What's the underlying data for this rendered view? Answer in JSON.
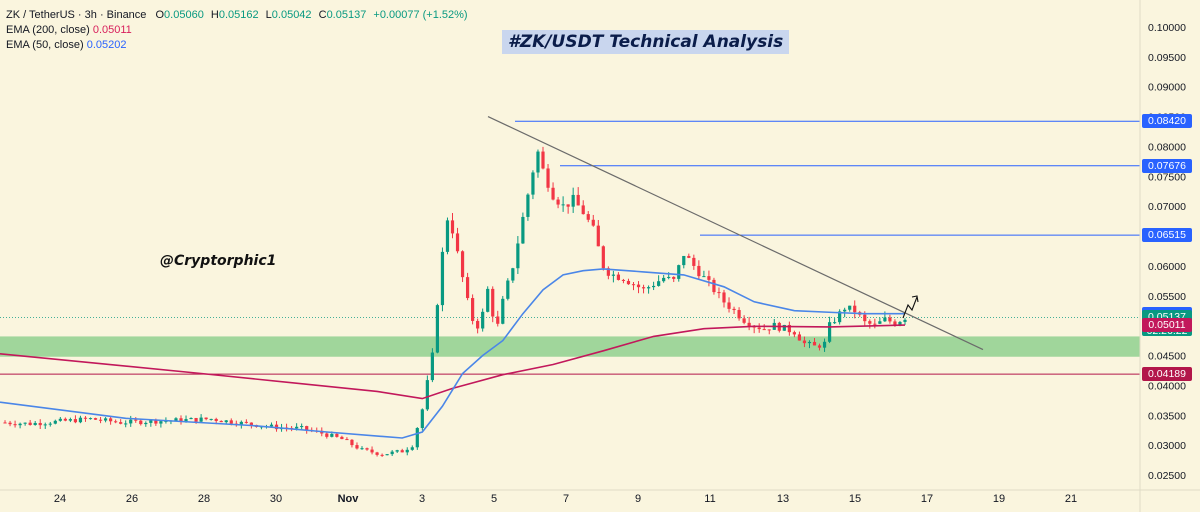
{
  "header": {
    "symbol_line": {
      "pair": "ZK / TetherUS · 3h · Binance",
      "o_label": "O",
      "o": "0.05060",
      "h_label": "H",
      "h": "0.05162",
      "l_label": "L",
      "l": "0.05042",
      "c_label": "C",
      "c": "0.05137",
      "change": "+0.00077 (+1.52%)"
    },
    "ema200": {
      "label": "EMA (200, close)",
      "value": "0.05011"
    },
    "ema50": {
      "label": "EMA (50, close)",
      "value": "0.05202"
    }
  },
  "title": "#ZK/USDT Technical Analysis",
  "watermark_handle": "@Cryptorphic1",
  "chart_data": {
    "type": "candlestick",
    "timeframe": "3h",
    "ylim": [
      0.0225,
      0.1045
    ],
    "y_ticks": [
      "0.10000",
      "0.09500",
      "0.09000",
      "0.08500",
      "0.08000",
      "0.07500",
      "0.07000",
      "0.06500",
      "0.06000",
      "0.05500",
      "0.05000",
      "0.04500",
      "0.04000",
      "0.03500",
      "0.03000",
      "0.02500"
    ],
    "x_ticks": [
      "24",
      "26",
      "28",
      "30",
      "Nov",
      "3",
      "5",
      "7",
      "9",
      "11",
      "13",
      "15",
      "17",
      "19",
      "21"
    ],
    "price_path": [
      [
        0,
        0.0338
      ],
      [
        6,
        0.0336
      ],
      [
        12,
        0.034
      ],
      [
        18,
        0.0344
      ],
      [
        24,
        0.0338
      ],
      [
        30,
        0.034
      ],
      [
        36,
        0.0342
      ],
      [
        42,
        0.0344
      ],
      [
        48,
        0.0337
      ],
      [
        52,
        0.0333
      ],
      [
        55,
        0.033
      ],
      [
        60,
        0.0328
      ],
      [
        64,
        0.032
      ],
      [
        68,
        0.031
      ],
      [
        72,
        0.0292
      ],
      [
        76,
        0.0285
      ],
      [
        80,
        0.029
      ],
      [
        82,
        0.03
      ],
      [
        84,
        0.036
      ],
      [
        86,
        0.045
      ],
      [
        87,
        0.054
      ],
      [
        88,
        0.062
      ],
      [
        89,
        0.068
      ],
      [
        90,
        0.066
      ],
      [
        91,
        0.062
      ],
      [
        92,
        0.058
      ],
      [
        93,
        0.054
      ],
      [
        94,
        0.051
      ],
      [
        95,
        0.05
      ],
      [
        96,
        0.052
      ],
      [
        97,
        0.056
      ],
      [
        98,
        0.052
      ],
      [
        99,
        0.05
      ],
      [
        100,
        0.054
      ],
      [
        102,
        0.06
      ],
      [
        104,
        0.068
      ],
      [
        106,
        0.076
      ],
      [
        107,
        0.079
      ],
      [
        108,
        0.076
      ],
      [
        110,
        0.072
      ],
      [
        112,
        0.07
      ],
      [
        114,
        0.071
      ],
      [
        116,
        0.069
      ],
      [
        118,
        0.066
      ],
      [
        119,
        0.063
      ],
      [
        120,
        0.06
      ],
      [
        121,
        0.059
      ],
      [
        122,
        0.0585
      ],
      [
        124,
        0.058
      ],
      [
        126,
        0.057
      ],
      [
        128,
        0.056
      ],
      [
        130,
        0.057
      ],
      [
        132,
        0.058
      ],
      [
        134,
        0.0575
      ],
      [
        136,
        0.062
      ],
      [
        138,
        0.06
      ],
      [
        140,
        0.058
      ],
      [
        142,
        0.056
      ],
      [
        144,
        0.054
      ],
      [
        146,
        0.0525
      ],
      [
        148,
        0.051
      ],
      [
        150,
        0.05
      ],
      [
        152,
        0.0495
      ],
      [
        154,
        0.05
      ],
      [
        156,
        0.0495
      ],
      [
        158,
        0.049
      ],
      [
        160,
        0.047
      ],
      [
        162,
        0.0465
      ],
      [
        164,
        0.047
      ],
      [
        165,
        0.05
      ],
      [
        166,
        0.051
      ],
      [
        168,
        0.053
      ],
      [
        170,
        0.0525
      ],
      [
        172,
        0.0505
      ],
      [
        174,
        0.05
      ],
      [
        176,
        0.051
      ],
      [
        178,
        0.0505
      ],
      [
        180,
        0.0514
      ]
    ],
    "ema200": [
      [
        0,
        0.0453
      ],
      [
        40,
        0.042
      ],
      [
        75,
        0.039
      ],
      [
        84,
        0.0378
      ],
      [
        90,
        0.0395
      ],
      [
        100,
        0.0418
      ],
      [
        110,
        0.0435
      ],
      [
        120,
        0.0458
      ],
      [
        130,
        0.0482
      ],
      [
        140,
        0.0495
      ],
      [
        150,
        0.0499
      ],
      [
        165,
        0.0498
      ],
      [
        180,
        0.0501
      ]
    ],
    "ema50": [
      [
        0,
        0.0372
      ],
      [
        25,
        0.0345
      ],
      [
        50,
        0.0333
      ],
      [
        65,
        0.0322
      ],
      [
        80,
        0.0312
      ],
      [
        84,
        0.0322
      ],
      [
        88,
        0.0365
      ],
      [
        92,
        0.042
      ],
      [
        96,
        0.045
      ],
      [
        100,
        0.0475
      ],
      [
        104,
        0.052
      ],
      [
        108,
        0.056
      ],
      [
        112,
        0.0585
      ],
      [
        116,
        0.0592
      ],
      [
        120,
        0.0595
      ],
      [
        128,
        0.059
      ],
      [
        136,
        0.0585
      ],
      [
        144,
        0.0565
      ],
      [
        150,
        0.054
      ],
      [
        158,
        0.0525
      ],
      [
        166,
        0.0522
      ],
      [
        172,
        0.052
      ],
      [
        180,
        0.052
      ]
    ],
    "support_zone": [
      0.0448,
      0.0482
    ],
    "horizontal_levels": [
      {
        "value": 0.0842,
        "label": "0.08420",
        "color": "#2962ff"
      },
      {
        "value": 0.07676,
        "label": "0.07676",
        "color": "#2962ff"
      },
      {
        "value": 0.06515,
        "label": "0.06515",
        "color": "#2962ff"
      },
      {
        "value": 0.04189,
        "label": "0.04189",
        "color": "#b2164a"
      }
    ],
    "trendline": {
      "from": [
        0.085,
        "Nov 5"
      ],
      "to": [
        0.046,
        "Nov 18"
      ],
      "color": "#6b6b6b"
    },
    "price_tags": [
      {
        "label": "0.05202",
        "sub": "",
        "value": 0.05202,
        "color": "#2962ff"
      },
      {
        "label": "0.05137",
        "sub": "02:26:22",
        "value": 0.05137,
        "color": "#089981"
      },
      {
        "label": "0.05011",
        "sub": "",
        "value": 0.05011,
        "color": "#c2185b"
      }
    ],
    "colors": {
      "bull": "#089981",
      "bear": "#f23645",
      "ema200": "#c2185b",
      "ema50": "#4a86e8",
      "zone": "#8fd08f",
      "background": "#faf5de"
    }
  }
}
